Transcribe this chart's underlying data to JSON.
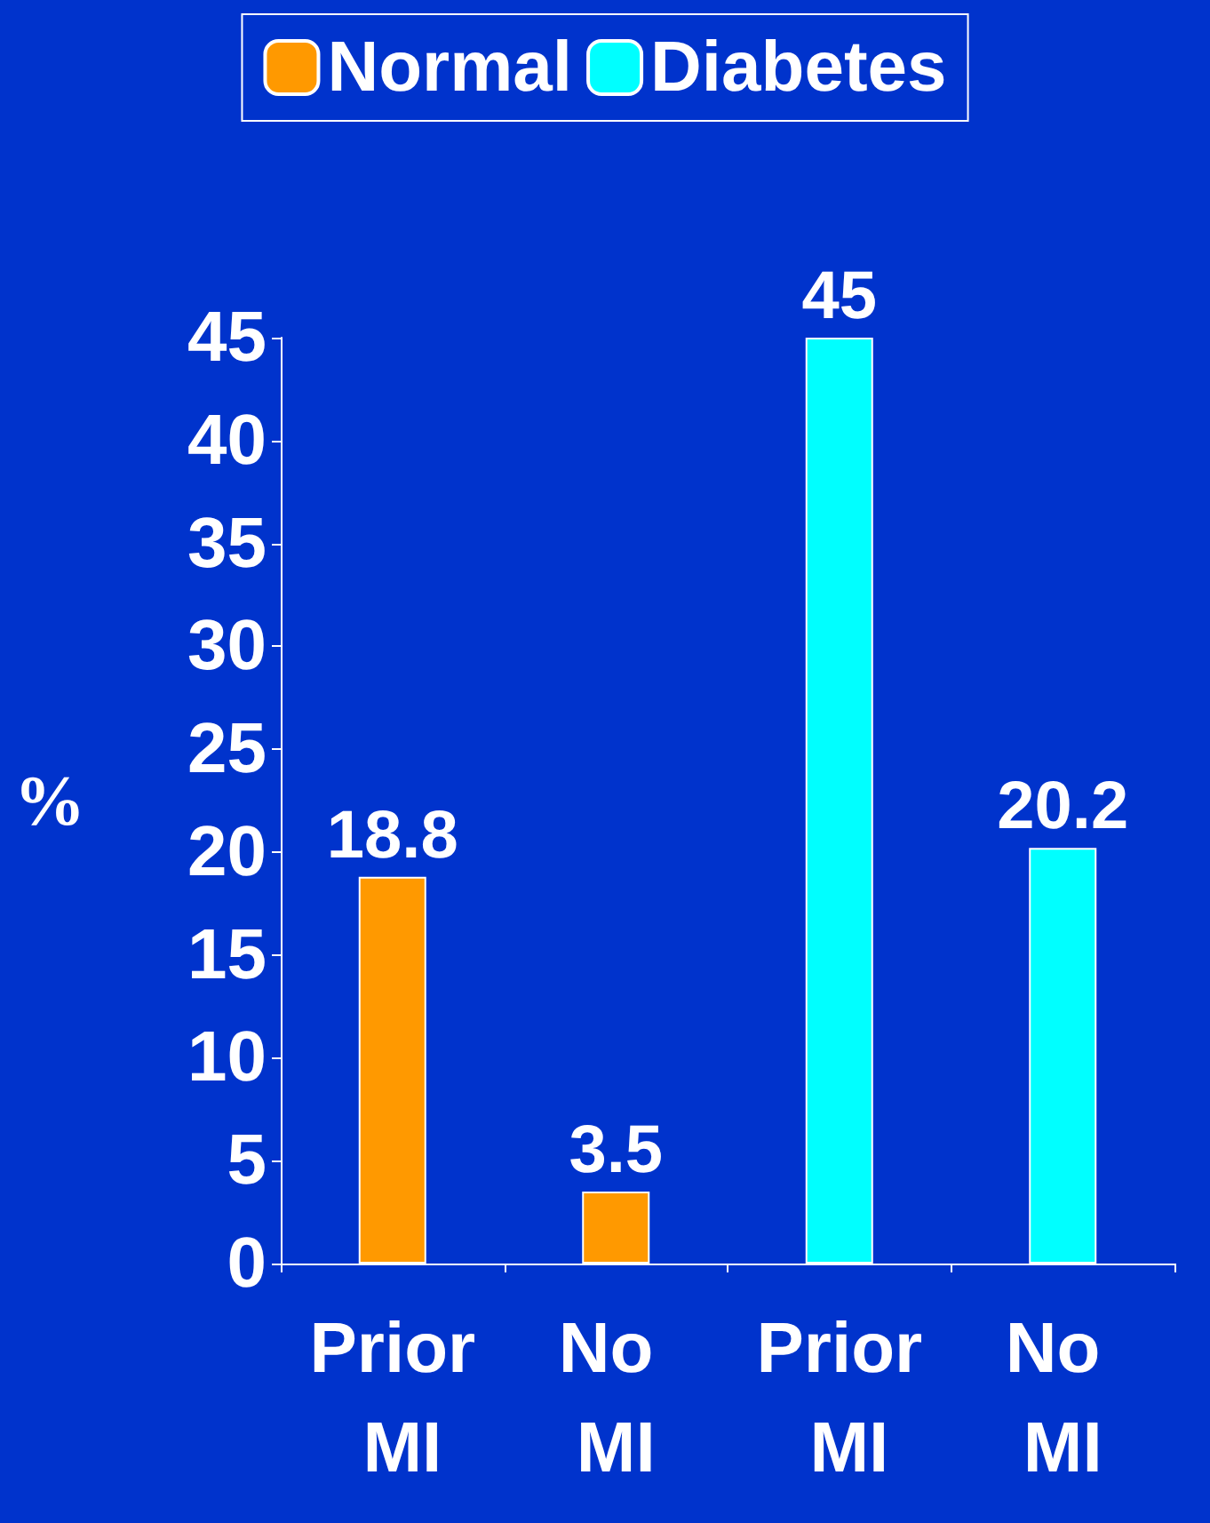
{
  "chart_data": {
    "type": "bar",
    "ylabel": "%",
    "categories": [
      "Prior MI",
      "No MI",
      "Prior MI",
      "No MI"
    ],
    "series": [
      {
        "name": "Normal",
        "color": "#ff9900",
        "values": [
          18.8,
          3.5,
          null,
          null
        ]
      },
      {
        "name": "Diabetes",
        "color": "#00ffff",
        "values": [
          null,
          null,
          45,
          20.2
        ]
      }
    ],
    "ylim": [
      0,
      45
    ],
    "yticks": [
      0,
      5,
      10,
      15,
      20,
      25,
      30,
      35,
      40,
      45
    ],
    "data_labels": true,
    "grid": false,
    "legend": "top"
  }
}
